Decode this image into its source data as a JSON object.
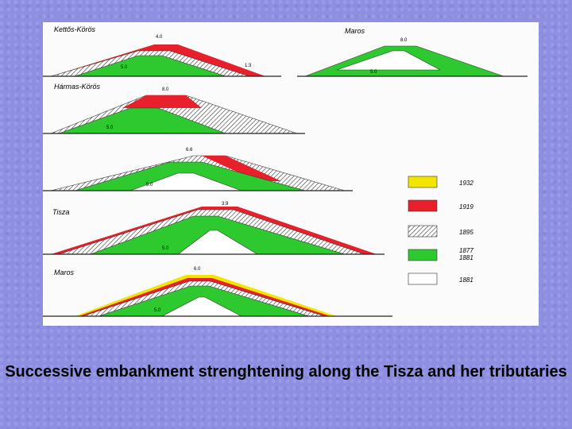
{
  "diagram": {
    "sections": [
      {
        "name": "Kettős-Körös"
      },
      {
        "name": "Maros"
      },
      {
        "name": "Hármas-Körös"
      },
      {
        "name": "Tisza"
      },
      {
        "name": "Maros"
      }
    ],
    "legend": [
      {
        "label": "1932",
        "color": "#f2e600",
        "pattern": "solid"
      },
      {
        "label": "1919",
        "color": "#e8202c",
        "pattern": "solid"
      },
      {
        "label": "1895",
        "color": "#ffffff",
        "pattern": "hatch"
      },
      {
        "label": "1877\n1881",
        "color": "#2ec92e",
        "pattern": "solid"
      },
      {
        "label": "1881",
        "color": "#ffffff",
        "pattern": "outline"
      }
    ]
  },
  "caption": "Successive embankment strenghtening along the Tisza and her tributaries"
}
